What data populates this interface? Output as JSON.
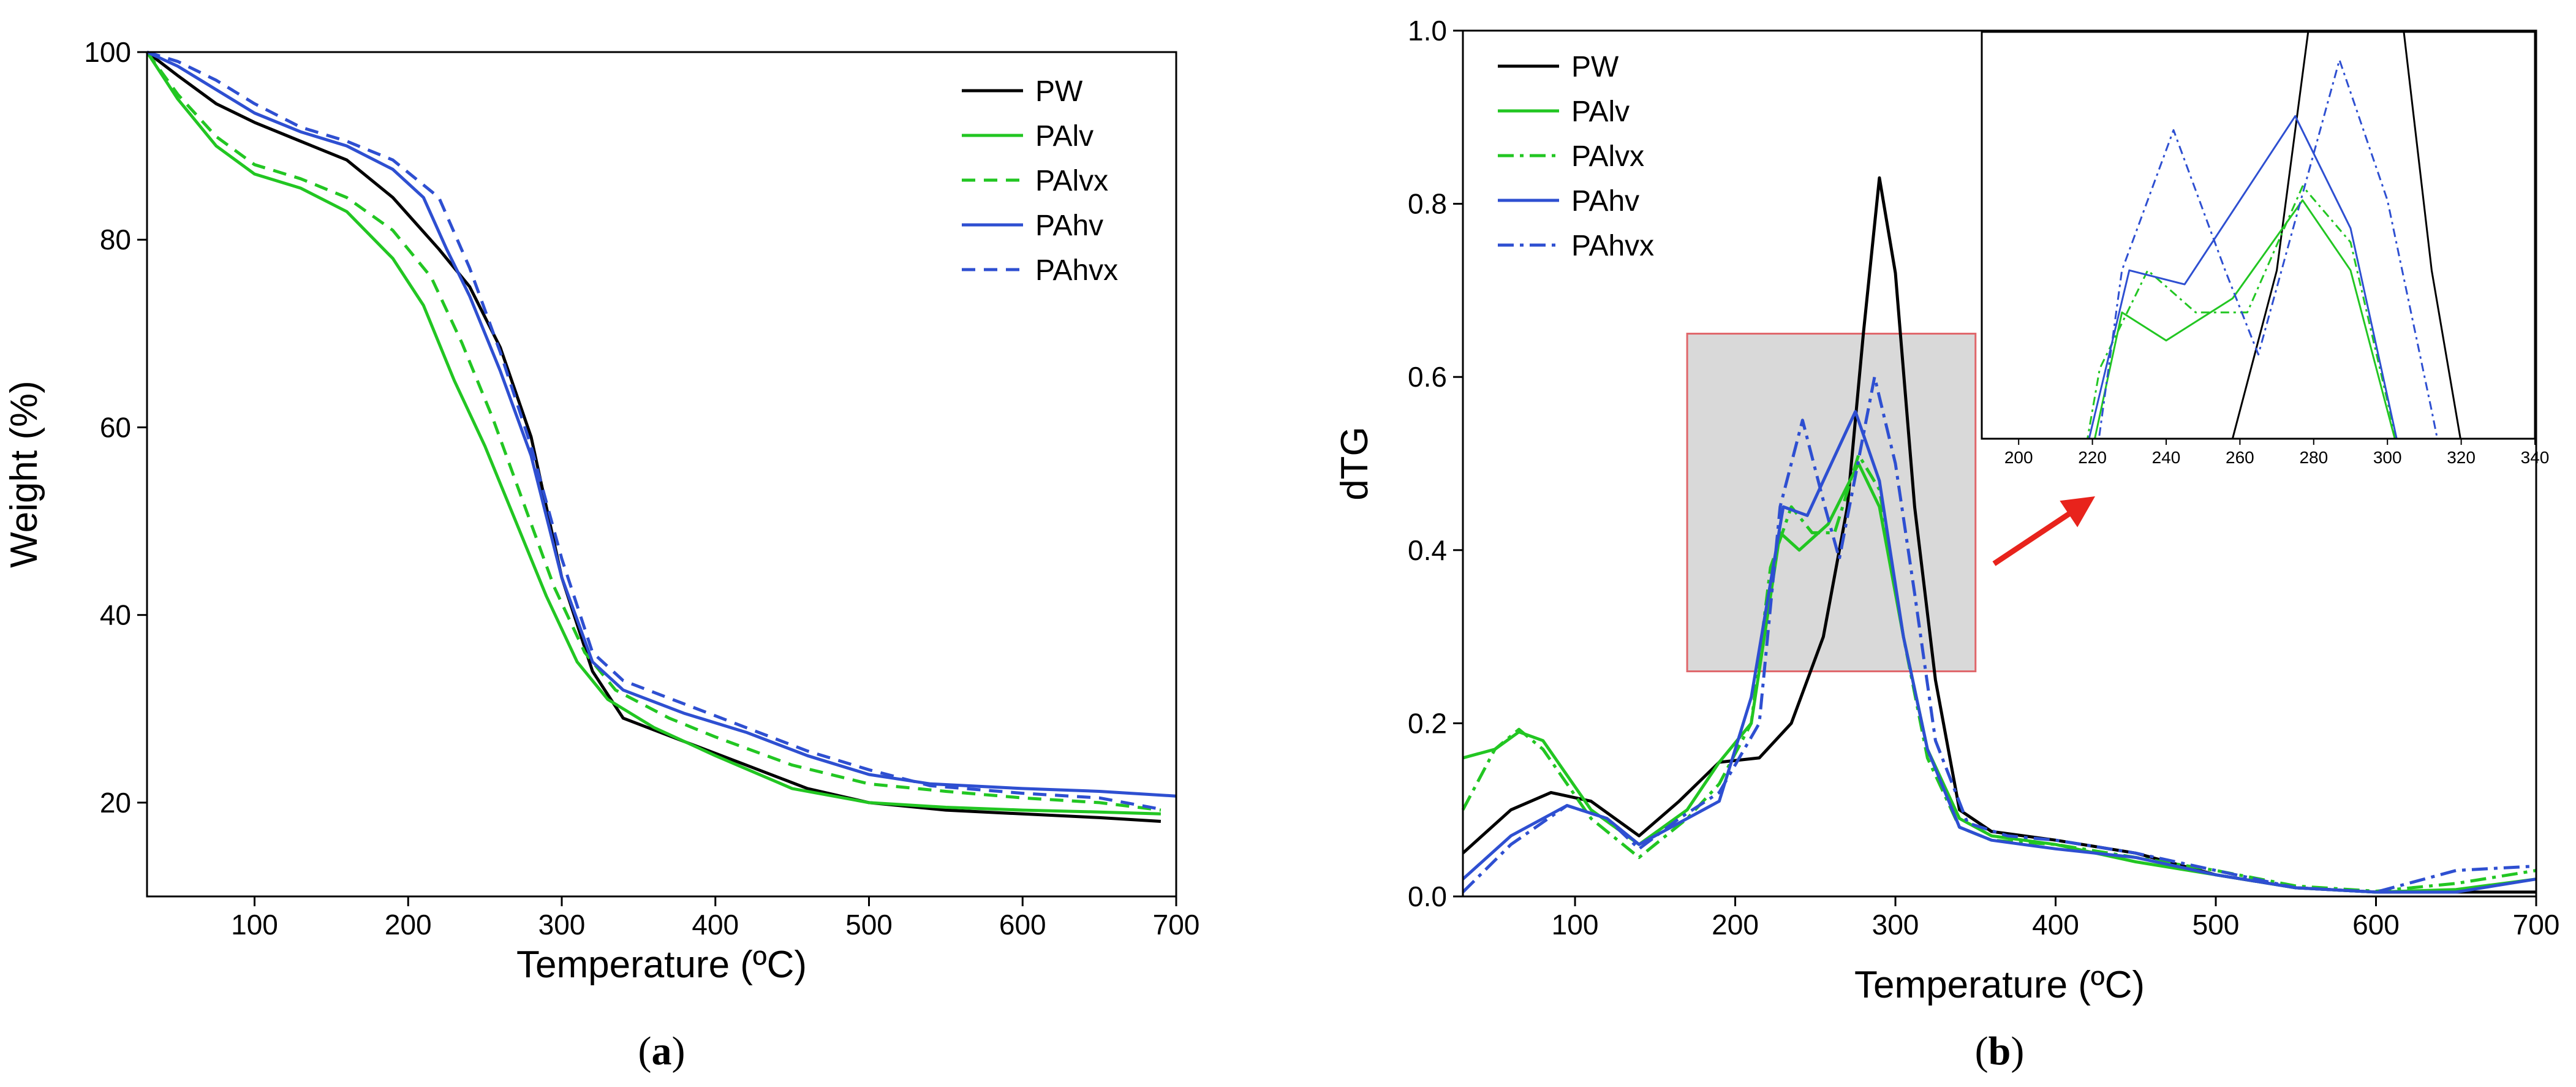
{
  "chart_data": [
    {
      "panel_label": "(a)",
      "panel_letter": "a",
      "type": "line",
      "xlabel": "Temperature (ºC)",
      "ylabel": "Weight (%)",
      "xlim": [
        30,
        700
      ],
      "ylim": [
        10,
        100
      ],
      "xticks": [
        100,
        200,
        300,
        400,
        500,
        600,
        700
      ],
      "yticks": [
        20,
        40,
        60,
        80,
        100
      ],
      "legend_position": "top-right",
      "series": [
        {
          "name": "PW",
          "color": "#000000",
          "dash": "solid",
          "points": [
            [
              30,
              100
            ],
            [
              50,
              97.5
            ],
            [
              75,
              94.5
            ],
            [
              100,
              92.5
            ],
            [
              130,
              90.5
            ],
            [
              160,
              88.5
            ],
            [
              190,
              84.5
            ],
            [
              220,
              79
            ],
            [
              240,
              75
            ],
            [
              260,
              68.5
            ],
            [
              280,
              59
            ],
            [
              300,
              44
            ],
            [
              320,
              34
            ],
            [
              340,
              29
            ],
            [
              380,
              26.5
            ],
            [
              420,
              24
            ],
            [
              460,
              21.5
            ],
            [
              500,
              20
            ],
            [
              550,
              19.2
            ],
            [
              600,
              18.8
            ],
            [
              650,
              18.4
            ],
            [
              690,
              18
            ]
          ]
        },
        {
          "name": "PAlv",
          "color": "#22c622",
          "dash": "solid",
          "points": [
            [
              30,
              100
            ],
            [
              50,
              95
            ],
            [
              75,
              90
            ],
            [
              100,
              87
            ],
            [
              130,
              85.5
            ],
            [
              160,
              83
            ],
            [
              190,
              78
            ],
            [
              210,
              73
            ],
            [
              230,
              65
            ],
            [
              250,
              58
            ],
            [
              270,
              50
            ],
            [
              290,
              42
            ],
            [
              310,
              35
            ],
            [
              330,
              31
            ],
            [
              360,
              28
            ],
            [
              400,
              25
            ],
            [
              450,
              21.5
            ],
            [
              500,
              20
            ],
            [
              550,
              19.5
            ],
            [
              600,
              19.2
            ],
            [
              650,
              19
            ],
            [
              690,
              18.8
            ]
          ]
        },
        {
          "name": "PAlvx",
          "color": "#22c622",
          "dash": "dashed",
          "points": [
            [
              30,
              100
            ],
            [
              50,
              95.5
            ],
            [
              75,
              91
            ],
            [
              100,
              88
            ],
            [
              130,
              86.5
            ],
            [
              160,
              84.5
            ],
            [
              190,
              81
            ],
            [
              215,
              76
            ],
            [
              235,
              69
            ],
            [
              255,
              61
            ],
            [
              275,
              52
            ],
            [
              295,
              43
            ],
            [
              315,
              36
            ],
            [
              335,
              32
            ],
            [
              370,
              29
            ],
            [
              400,
              27
            ],
            [
              450,
              24
            ],
            [
              500,
              22
            ],
            [
              550,
              21.2
            ],
            [
              600,
              20.5
            ],
            [
              650,
              20
            ],
            [
              690,
              19.2
            ]
          ]
        },
        {
          "name": "PAhv",
          "color": "#2e4fd1",
          "dash": "solid",
          "points": [
            [
              30,
              100
            ],
            [
              50,
              98.5
            ],
            [
              75,
              96
            ],
            [
              100,
              93.5
            ],
            [
              130,
              91.5
            ],
            [
              160,
              90
            ],
            [
              190,
              87.5
            ],
            [
              210,
              84.5
            ],
            [
              225,
              79
            ],
            [
              240,
              74
            ],
            [
              260,
              66
            ],
            [
              280,
              57
            ],
            [
              300,
              44
            ],
            [
              320,
              35
            ],
            [
              340,
              32
            ],
            [
              380,
              29.5
            ],
            [
              420,
              27.5
            ],
            [
              460,
              25
            ],
            [
              500,
              23
            ],
            [
              540,
              22
            ],
            [
              600,
              21.5
            ],
            [
              650,
              21.2
            ],
            [
              700,
              20.7
            ]
          ]
        },
        {
          "name": "PAhvx",
          "color": "#2e4fd1",
          "dash": "dashed",
          "points": [
            [
              30,
              100
            ],
            [
              50,
              99
            ],
            [
              75,
              97
            ],
            [
              100,
              94.5
            ],
            [
              130,
              92
            ],
            [
              160,
              90.5
            ],
            [
              190,
              88.5
            ],
            [
              220,
              84.5
            ],
            [
              240,
              77
            ],
            [
              260,
              68
            ],
            [
              280,
              58
            ],
            [
              300,
              46
            ],
            [
              320,
              36
            ],
            [
              340,
              33
            ],
            [
              380,
              30.5
            ],
            [
              420,
              28
            ],
            [
              460,
              25.5
            ],
            [
              500,
              23.5
            ],
            [
              540,
              21.8
            ],
            [
              600,
              21
            ],
            [
              650,
              20.5
            ],
            [
              690,
              19.3
            ]
          ]
        }
      ]
    },
    {
      "panel_label": "(b)",
      "panel_letter": "b",
      "type": "line",
      "xlabel": "Temperature (ºC)",
      "ylabel": "dTG",
      "xlim": [
        30,
        700
      ],
      "ylim": [
        0.0,
        1.0
      ],
      "xticks": [
        100,
        200,
        300,
        400,
        500,
        600,
        700
      ],
      "yticks": [
        0.0,
        0.2,
        0.4,
        0.6,
        0.8,
        1.0
      ],
      "legend_position": "top-left",
      "highlight_region": {
        "x": [
          170,
          350
        ],
        "y": [
          0.26,
          0.65
        ]
      },
      "series": [
        {
          "name": "PW",
          "color": "#000000",
          "dash": "solid",
          "points": [
            [
              30,
              0.05
            ],
            [
              60,
              0.1
            ],
            [
              85,
              0.12
            ],
            [
              110,
              0.11
            ],
            [
              140,
              0.07
            ],
            [
              165,
              0.11
            ],
            [
              190,
              0.155
            ],
            [
              215,
              0.16
            ],
            [
              235,
              0.2
            ],
            [
              255,
              0.3
            ],
            [
              270,
              0.45
            ],
            [
              280,
              0.65
            ],
            [
              290,
              0.83
            ],
            [
              300,
              0.72
            ],
            [
              312,
              0.45
            ],
            [
              325,
              0.25
            ],
            [
              340,
              0.1
            ],
            [
              360,
              0.075
            ],
            [
              400,
              0.065
            ],
            [
              450,
              0.05
            ],
            [
              500,
              0.025
            ],
            [
              550,
              0.01
            ],
            [
              600,
              0.005
            ],
            [
              650,
              0.005
            ],
            [
              700,
              0.005
            ]
          ]
        },
        {
          "name": "PAlv",
          "color": "#22c622",
          "dash": "solid",
          "points": [
            [
              30,
              0.16
            ],
            [
              50,
              0.17
            ],
            [
              65,
              0.19
            ],
            [
              80,
              0.18
            ],
            [
              110,
              0.1
            ],
            [
              140,
              0.06
            ],
            [
              170,
              0.1
            ],
            [
              190,
              0.155
            ],
            [
              210,
              0.2
            ],
            [
              228,
              0.42
            ],
            [
              240,
              0.4
            ],
            [
              258,
              0.43
            ],
            [
              277,
              0.5
            ],
            [
              290,
              0.45
            ],
            [
              305,
              0.3
            ],
            [
              320,
              0.17
            ],
            [
              340,
              0.09
            ],
            [
              360,
              0.07
            ],
            [
              400,
              0.06
            ],
            [
              450,
              0.04
            ],
            [
              500,
              0.025
            ],
            [
              550,
              0.01
            ],
            [
              600,
              0.005
            ],
            [
              650,
              0.008
            ],
            [
              700,
              0.02
            ]
          ]
        },
        {
          "name": "PAlvx",
          "color": "#22c622",
          "dash": "dashdot",
          "points": [
            [
              30,
              0.1
            ],
            [
              50,
              0.17
            ],
            [
              65,
              0.193
            ],
            [
              80,
              0.17
            ],
            [
              110,
              0.09
            ],
            [
              140,
              0.045
            ],
            [
              170,
              0.09
            ],
            [
              190,
              0.13
            ],
            [
              210,
              0.2
            ],
            [
              222,
              0.38
            ],
            [
              235,
              0.45
            ],
            [
              248,
              0.42
            ],
            [
              262,
              0.42
            ],
            [
              277,
              0.51
            ],
            [
              290,
              0.47
            ],
            [
              305,
              0.3
            ],
            [
              320,
              0.16
            ],
            [
              340,
              0.08
            ],
            [
              360,
              0.065
            ],
            [
              400,
              0.06
            ],
            [
              450,
              0.045
            ],
            [
              500,
              0.03
            ],
            [
              550,
              0.012
            ],
            [
              600,
              0.006
            ],
            [
              650,
              0.015
            ],
            [
              700,
              0.03
            ]
          ]
        },
        {
          "name": "PAhv",
          "color": "#2e4fd1",
          "dash": "solid",
          "points": [
            [
              30,
              0.02
            ],
            [
              60,
              0.07
            ],
            [
              95,
              0.105
            ],
            [
              120,
              0.09
            ],
            [
              140,
              0.06
            ],
            [
              165,
              0.085
            ],
            [
              190,
              0.11
            ],
            [
              210,
              0.23
            ],
            [
              230,
              0.45
            ],
            [
              245,
              0.44
            ],
            [
              260,
              0.5
            ],
            [
              275,
              0.56
            ],
            [
              290,
              0.48
            ],
            [
              305,
              0.3
            ],
            [
              320,
              0.17
            ],
            [
              340,
              0.08
            ],
            [
              360,
              0.065
            ],
            [
              400,
              0.055
            ],
            [
              450,
              0.045
            ],
            [
              500,
              0.025
            ],
            [
              550,
              0.01
            ],
            [
              600,
              0.005
            ],
            [
              650,
              0.005
            ],
            [
              700,
              0.02
            ]
          ]
        },
        {
          "name": "PAhvx",
          "color": "#2e4fd1",
          "dash": "dashdot",
          "points": [
            [
              30,
              0.005
            ],
            [
              60,
              0.06
            ],
            [
              95,
              0.105
            ],
            [
              120,
              0.09
            ],
            [
              140,
              0.055
            ],
            [
              165,
              0.09
            ],
            [
              190,
              0.12
            ],
            [
              215,
              0.2
            ],
            [
              228,
              0.45
            ],
            [
              242,
              0.55
            ],
            [
              256,
              0.45
            ],
            [
              265,
              0.39
            ],
            [
              287,
              0.6
            ],
            [
              300,
              0.5
            ],
            [
              312,
              0.35
            ],
            [
              325,
              0.18
            ],
            [
              345,
              0.085
            ],
            [
              370,
              0.07
            ],
            [
              400,
              0.065
            ],
            [
              450,
              0.05
            ],
            [
              500,
              0.03
            ],
            [
              550,
              0.01
            ],
            [
              600,
              0.005
            ],
            [
              650,
              0.03
            ],
            [
              700,
              0.035
            ]
          ]
        }
      ],
      "inset": {
        "xlim": [
          190,
          340
        ],
        "ylim": [
          0.33,
          0.62
        ],
        "xticks": [
          200,
          220,
          240,
          260,
          280,
          300,
          320,
          340
        ]
      }
    }
  ]
}
